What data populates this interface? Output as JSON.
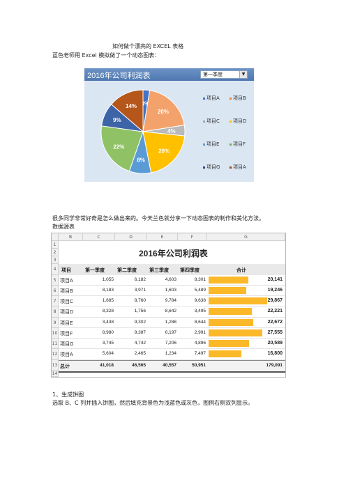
{
  "doc": {
    "title": "如何做个漂亮的 EXCEL 表格",
    "intro": "蓝色老师用 Excel 模拟做了一个动态图表：",
    "para1": "很多同学非常好奇是怎么做出来的。今天兰色就分享一下动态图表的制作和美化方法。",
    "para1b": "数据源表",
    "step1": "1、生成饼图",
    "step1_desc": "选取 B、C 列并插入饼图，然后填充背景色为浅蓝色或灰色，图例右侧双列显示。"
  },
  "pie_panel": {
    "title": "2016年公司利润表",
    "dropdown_value": "第一季度",
    "legend": [
      [
        "项目A",
        "项目B"
      ],
      [
        "项目C",
        "项目D"
      ],
      [
        "项目E",
        "项目F"
      ],
      [
        "项目G",
        "项目A"
      ]
    ],
    "legend_colors": [
      [
        "#4472c4",
        "#ed7d31"
      ],
      [
        "#a5a5a5",
        "#ffc000"
      ],
      [
        "#5b9bd5",
        "#70ad47"
      ],
      [
        "#264478",
        "#9e480e"
      ]
    ]
  },
  "chart_data": {
    "type": "pie",
    "title": "2016年公司利润表",
    "categories": [
      "项目A",
      "项目B",
      "项目C",
      "项目D",
      "项目E",
      "项目F",
      "项目G",
      "项目A"
    ],
    "values": [
      1055,
      8183,
      1685,
      8328,
      3438,
      8980,
      3745,
      5604
    ],
    "labels": [
      "3%",
      "20%",
      "4%",
      "20%",
      "8%",
      "22%",
      "9%",
      "14%"
    ],
    "colors": [
      "#4472c4",
      "#f4a26b",
      "#b9b9b9",
      "#ffc000",
      "#5b9bd5",
      "#8fc264",
      "#3e64a8",
      "#b5561a"
    ]
  },
  "sheet": {
    "col_headers": [
      "B",
      "C",
      "D",
      "E",
      "F",
      "G"
    ],
    "row_numbers": [
      "1",
      "2",
      "3",
      "4",
      "5",
      "6",
      "7",
      "8",
      "9",
      "10",
      "11",
      "12",
      "13",
      "14"
    ],
    "title": "2016年公司利润表",
    "headers": [
      "项目",
      "第一季度",
      "第二季度",
      "第三季度",
      "第四季度",
      "合计"
    ],
    "rows": [
      [
        "项目A",
        "1,055",
        "6,182",
        "4,603",
        "8,301",
        "20,141"
      ],
      [
        "项目B",
        "8,183",
        "3,971",
        "1,603",
        "5,489",
        "19,246"
      ],
      [
        "项目C",
        "1,685",
        "8,760",
        "9,784",
        "9,638",
        "29,867"
      ],
      [
        "项目D",
        "8,328",
        "1,756",
        "8,642",
        "3,495",
        "22,221"
      ],
      [
        "项目E",
        "3,438",
        "9,302",
        "1,288",
        "8,644",
        "22,672"
      ],
      [
        "项目F",
        "8,980",
        "9,387",
        "6,197",
        "2,991",
        "27,555"
      ],
      [
        "项目G",
        "3,745",
        "4,742",
        "7,206",
        "4,896",
        "20,589"
      ],
      [
        "项目A",
        "5,604",
        "2,465",
        "1,234",
        "7,497",
        "16,800"
      ]
    ],
    "row_totals": [
      20141,
      19246,
      29867,
      22221,
      22672,
      27555,
      20589,
      16800
    ],
    "total": [
      "总计",
      "41,018",
      "46,565",
      "40,557",
      "50,951",
      "179,091"
    ]
  }
}
